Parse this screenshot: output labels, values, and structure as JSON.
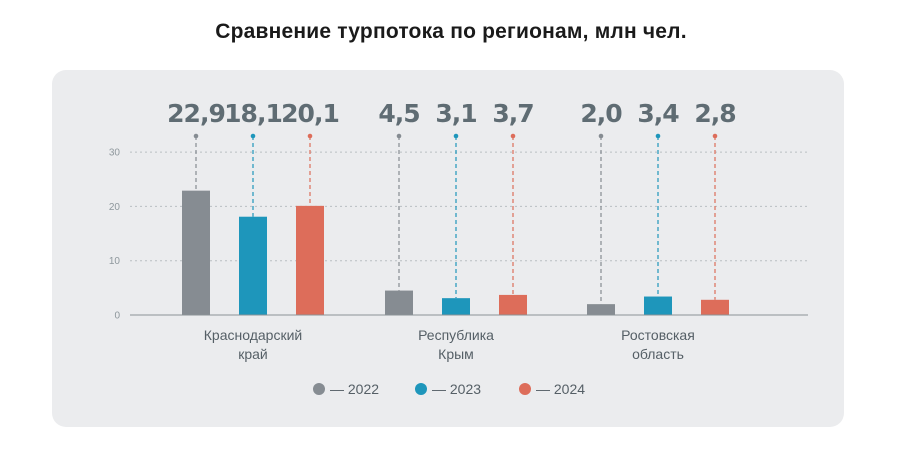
{
  "chart_data": {
    "type": "bar",
    "title": "Сравнение турпотока по регионам, млн чел.",
    "categories": [
      [
        "Краснодарский",
        "край"
      ],
      [
        "Республика",
        "Крым"
      ],
      [
        "Ростовская",
        "область"
      ]
    ],
    "series": [
      {
        "name": "— 2022",
        "color": "#868c92",
        "values": [
          22.9,
          4.5,
          2.0
        ],
        "labels": [
          "22,9",
          "4,5",
          "2,0"
        ]
      },
      {
        "name": "— 2023",
        "color": "#1e96bb",
        "values": [
          18.1,
          3.1,
          3.4
        ],
        "labels": [
          "18,1",
          "3,1",
          "3,4"
        ]
      },
      {
        "name": "— 2024",
        "color": "#dd6d5a",
        "values": [
          20.1,
          3.7,
          2.8
        ],
        "labels": [
          "20,1",
          "3,7",
          "2,8"
        ]
      }
    ],
    "yticks": [
      "0",
      "10",
      "20",
      "30"
    ],
    "ylim": [
      0,
      30
    ],
    "grid": true,
    "legend": "bottom-center"
  }
}
